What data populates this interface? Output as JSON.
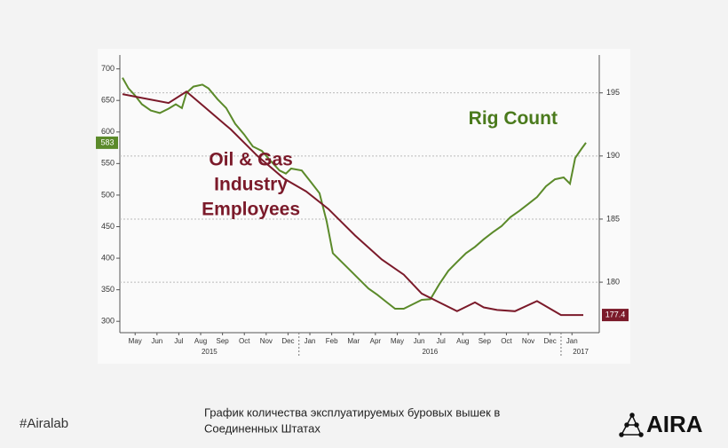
{
  "chart_data": {
    "type": "line",
    "annotations": [
      {
        "lines": [
          "Oil & Gas",
          "Industry",
          "Employees"
        ],
        "color": "#7b1a2a",
        "x": 5.8,
        "y": 555
      },
      {
        "lines": [
          "Rig Count"
        ],
        "color": "#4a7a1c",
        "x": 17.8,
        "y": 620
      }
    ],
    "xlim": [
      -0.2,
      21.75
    ],
    "xticks": [
      {
        "value": 0.5,
        "label": "May"
      },
      {
        "value": 1.5,
        "label": "Jun"
      },
      {
        "value": 2.5,
        "label": "Jul"
      },
      {
        "value": 3.5,
        "label": "Aug"
      },
      {
        "value": 4.5,
        "label": "Sep"
      },
      {
        "value": 5.5,
        "label": "Oct"
      },
      {
        "value": 6.5,
        "label": "Nov"
      },
      {
        "value": 7.5,
        "label": "Dec"
      },
      {
        "value": 8.5,
        "label": "Jan"
      },
      {
        "value": 9.5,
        "label": "Feb"
      },
      {
        "value": 10.5,
        "label": "Mar"
      },
      {
        "value": 11.5,
        "label": "Apr"
      },
      {
        "value": 12.5,
        "label": "May"
      },
      {
        "value": 13.5,
        "label": "Jun"
      },
      {
        "value": 14.5,
        "label": "Jul"
      },
      {
        "value": 15.5,
        "label": "Aug"
      },
      {
        "value": 16.5,
        "label": "Sep"
      },
      {
        "value": 17.5,
        "label": "Oct"
      },
      {
        "value": 18.5,
        "label": "Nov"
      },
      {
        "value": 19.5,
        "label": "Dec"
      },
      {
        "value": 20.5,
        "label": "Jan"
      }
    ],
    "year_ticks": [
      {
        "value": 3.9,
        "label": "2015"
      },
      {
        "value": 14.0,
        "label": "2016"
      },
      {
        "value": 20.9,
        "label": "2017"
      }
    ],
    "year_dividers": [
      8,
      20
    ],
    "ylim": [
      282,
      722
    ],
    "yticks": [
      300,
      350,
      400,
      450,
      500,
      550,
      600,
      650,
      700
    ],
    "y2lim": [
      176,
      198
    ],
    "y2ticks": [
      180,
      185,
      190,
      195
    ],
    "grid": true,
    "series": [
      {
        "name": "Rig Count",
        "color": "#5b8a2a",
        "value_label": "583",
        "x": [
          -0.08,
          0.2,
          0.49,
          0.81,
          1.22,
          1.63,
          2.03,
          2.36,
          2.64,
          2.85,
          3.17,
          3.58,
          3.86,
          4.27,
          4.67,
          5.08,
          5.49,
          5.89,
          6.3,
          6.71,
          7.11,
          7.4,
          7.64,
          8.13,
          8.54,
          8.94,
          9.27,
          9.55,
          9.96,
          10.37,
          10.77,
          11.18,
          11.59,
          11.99,
          12.4,
          12.8,
          13.21,
          13.62,
          14.02,
          14.43,
          14.84,
          15.24,
          15.65,
          16.06,
          16.46,
          16.87,
          17.28,
          17.68,
          18.09,
          18.5,
          18.9,
          19.31,
          19.72,
          20.12,
          20.41,
          20.65,
          20.93,
          21.14
        ],
        "values": [
          686,
          669,
          658,
          644,
          634,
          630,
          637,
          644,
          638,
          662,
          672,
          675,
          669,
          652,
          638,
          613,
          596,
          577,
          570,
          554,
          539,
          534,
          542,
          539,
          521,
          503,
          458,
          408,
          394,
          380,
          366,
          352,
          342,
          331,
          320,
          320,
          327,
          334,
          335,
          359,
          380,
          394,
          408,
          418,
          430,
          441,
          451,
          465,
          475,
          486,
          497,
          514,
          525,
          528,
          518,
          559,
          573,
          583
        ]
      },
      {
        "name": "Oil & Gas Industry Employees",
        "color": "#7b1a2a",
        "axis": "y2",
        "value_label": "177.4",
        "x": [
          -0.08,
          0.81,
          2.03,
          2.85,
          3.66,
          4.88,
          6.1,
          7.32,
          8.33,
          9.35,
          10.57,
          11.79,
          12.8,
          13.62,
          14.43,
          15.24,
          16.06,
          16.46,
          17.07,
          17.89,
          18.9,
          20.0,
          21.02
        ],
        "values": [
          194.9,
          194.6,
          194.2,
          195.1,
          193.9,
          192.1,
          190,
          188.2,
          187.2,
          185.8,
          183.7,
          181.8,
          180.6,
          179.1,
          178.4,
          177.7,
          178.4,
          178.0,
          177.8,
          177.7,
          178.5,
          177.4,
          177.4
        ]
      }
    ]
  },
  "footer": {
    "hashtag": "#Airalab",
    "caption": [
      "График количества эксплуатируемых буровых вышек в",
      "Соединенных Штатах"
    ],
    "logo": "AIRA"
  }
}
